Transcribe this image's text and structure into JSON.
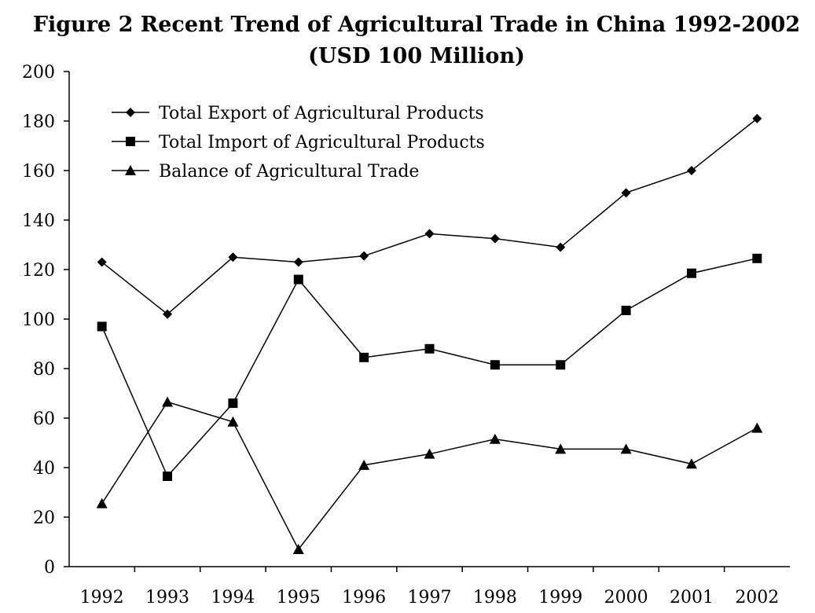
{
  "chart_data": {
    "type": "line",
    "title": "Figure 2 Recent Trend of Agricultural Trade in China 1992-2002",
    "subtitle": "(USD 100 Million)",
    "categories": [
      "1992",
      "1993",
      "1994",
      "1995",
      "1996",
      "1997",
      "1998",
      "1999",
      "2000",
      "2001",
      "2002"
    ],
    "ylim": [
      0,
      200
    ],
    "yticks": [
      "0",
      "20",
      "40",
      "60",
      "80",
      "100",
      "120",
      "140",
      "160",
      "180",
      "200"
    ],
    "grid": false,
    "legend_position": "top-left",
    "series": [
      {
        "name": "Total Export of Agricultural Products",
        "marker": "diamond",
        "values": [
          123,
          102,
          125,
          123,
          125.5,
          134.5,
          132.5,
          129,
          151,
          160,
          181
        ]
      },
      {
        "name": "Total Import of Agricultural Products",
        "marker": "square",
        "values": [
          97,
          36.5,
          66,
          116,
          84.5,
          88,
          81.5,
          81.5,
          103.5,
          118.5,
          124.5
        ]
      },
      {
        "name": "Balance of Agricultural Trade",
        "marker": "triangle",
        "values": [
          25.5,
          66.5,
          58.5,
          7,
          41,
          45.5,
          51.5,
          47.5,
          47.5,
          41.5,
          56
        ]
      }
    ]
  }
}
